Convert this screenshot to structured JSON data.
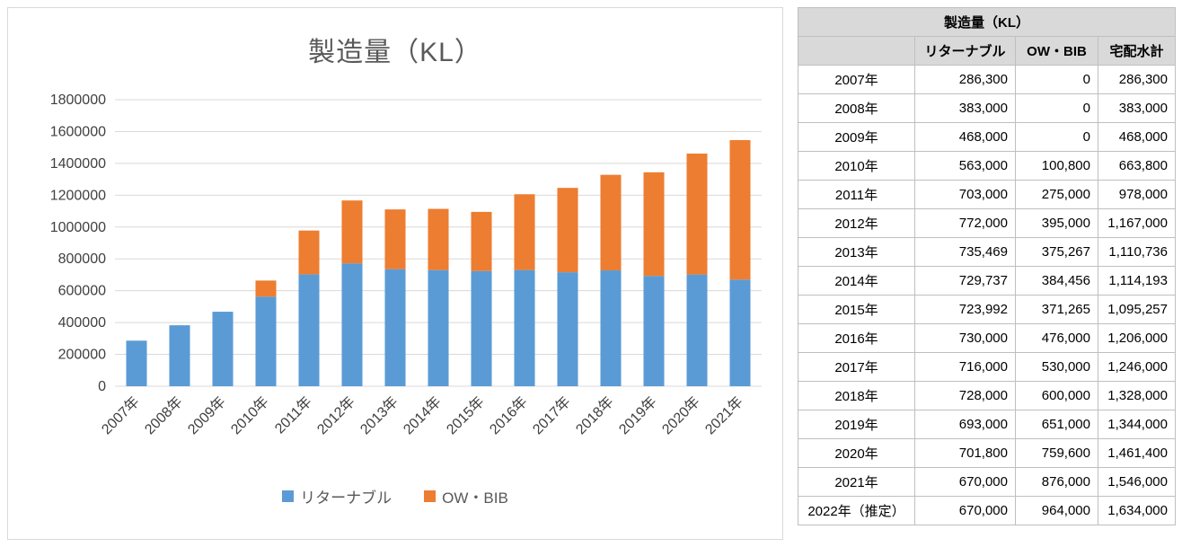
{
  "chart_data": {
    "type": "bar",
    "stacked": true,
    "title": "製造量（KL）",
    "categories": [
      "2007年",
      "2008年",
      "2009年",
      "2010年",
      "2011年",
      "2012年",
      "2013年",
      "2014年",
      "2015年",
      "2016年",
      "2017年",
      "2018年",
      "2019年",
      "2020年",
      "2021年"
    ],
    "series": [
      {
        "name": "リターナブル",
        "color": "#5B9BD5",
        "values": [
          286300,
          383000,
          468000,
          563000,
          703000,
          772000,
          735469,
          729737,
          723992,
          730000,
          716000,
          728000,
          693000,
          701800,
          670000
        ]
      },
      {
        "name": "OW・BIB",
        "color": "#ED7D31",
        "values": [
          0,
          0,
          0,
          100800,
          275000,
          395000,
          375267,
          384456,
          371265,
          476000,
          530000,
          600000,
          651000,
          759600,
          876000
        ]
      }
    ],
    "ylim": [
      0,
      1800000
    ],
    "y_tick_step": 200000,
    "grid": true,
    "legend_position": "bottom"
  },
  "table": {
    "title": "製造量（KL）",
    "columns": [
      "",
      "リターナブル",
      "OW・BIB",
      "宅配水計"
    ],
    "rows": [
      [
        "2007年",
        "286,300",
        "0",
        "286,300"
      ],
      [
        "2008年",
        "383,000",
        "0",
        "383,000"
      ],
      [
        "2009年",
        "468,000",
        "0",
        "468,000"
      ],
      [
        "2010年",
        "563,000",
        "100,800",
        "663,800"
      ],
      [
        "2011年",
        "703,000",
        "275,000",
        "978,000"
      ],
      [
        "2012年",
        "772,000",
        "395,000",
        "1,167,000"
      ],
      [
        "2013年",
        "735,469",
        "375,267",
        "1,110,736"
      ],
      [
        "2014年",
        "729,737",
        "384,456",
        "1,114,193"
      ],
      [
        "2015年",
        "723,992",
        "371,265",
        "1,095,257"
      ],
      [
        "2016年",
        "730,000",
        "476,000",
        "1,206,000"
      ],
      [
        "2017年",
        "716,000",
        "530,000",
        "1,246,000"
      ],
      [
        "2018年",
        "728,000",
        "600,000",
        "1,328,000"
      ],
      [
        "2019年",
        "693,000",
        "651,000",
        "1,344,000"
      ],
      [
        "2020年",
        "701,800",
        "759,600",
        "1,461,400"
      ],
      [
        "2021年",
        "670,000",
        "876,000",
        "1,546,000"
      ],
      [
        "2022年（推定）",
        "670,000",
        "964,000",
        "1,634,000"
      ]
    ]
  }
}
